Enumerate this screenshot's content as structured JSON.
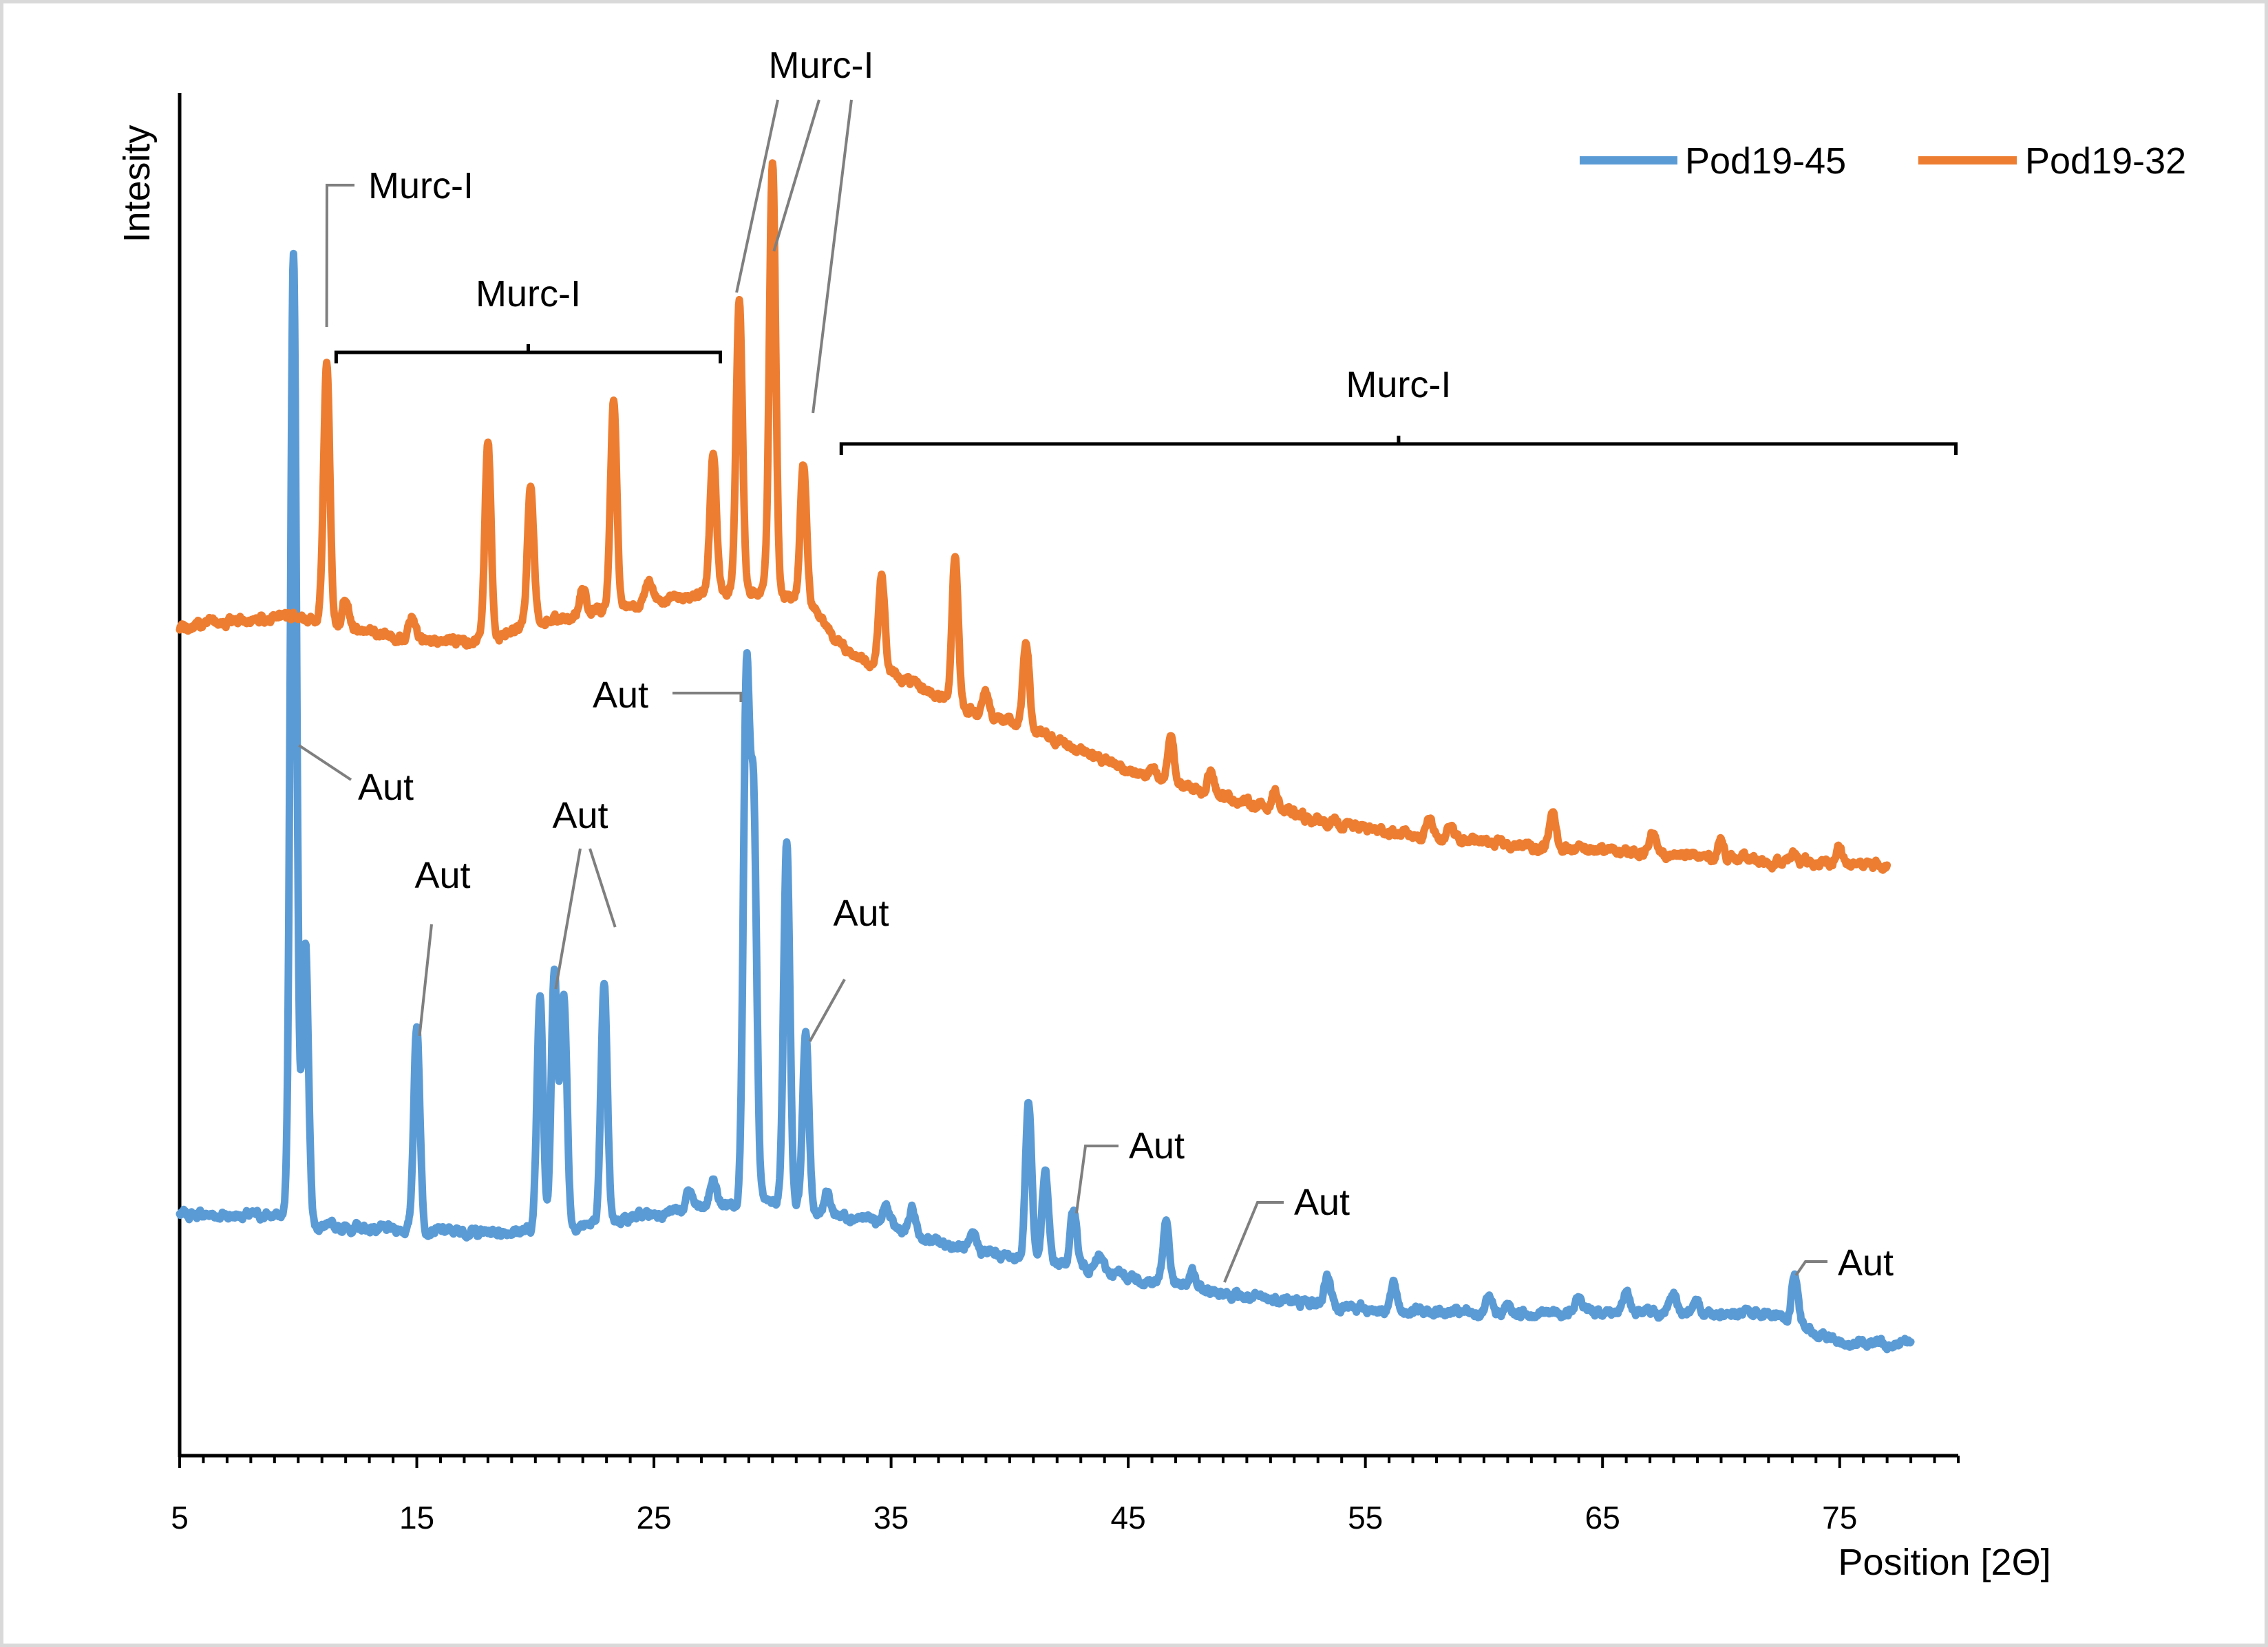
{
  "chart_data": {
    "type": "line",
    "title": "",
    "xlabel": "Position [2Θ]",
    "ylabel": "Intesity",
    "xlim": [
      5,
      80
    ],
    "xticks": [
      5,
      15,
      25,
      35,
      45,
      55,
      65,
      75
    ],
    "yticks_shown": false,
    "grid": false,
    "legend_position": "top-right",
    "series": [
      {
        "name": "Pod19-45",
        "color": "#5B9BD5",
        "x_range": [
          5,
          78
        ],
        "baseline": [
          [
            5,
            17.7
          ],
          [
            9.2,
            17.6
          ],
          [
            10.5,
            16.8
          ],
          [
            14,
            16.6
          ],
          [
            18,
            16.4
          ],
          [
            21,
            16.6
          ],
          [
            24,
            17.5
          ],
          [
            27,
            18.2
          ],
          [
            29.5,
            18.8
          ],
          [
            31.5,
            18.0
          ],
          [
            34,
            17.4
          ],
          [
            37,
            15.6
          ],
          [
            40,
            14.6
          ],
          [
            43,
            13.9
          ],
          [
            46,
            12.8
          ],
          [
            50,
            11.6
          ],
          [
            55,
            10.8
          ],
          [
            60,
            10.4
          ],
          [
            65,
            10.6
          ],
          [
            70,
            10.5
          ],
          [
            72,
            10.4
          ],
          [
            75,
            8.3
          ],
          [
            78,
            8.3
          ]
        ],
        "peaks": [
          [
            9.8,
            88.5
          ],
          [
            10.3,
            38.0
          ],
          [
            15.0,
            31.5
          ],
          [
            20.2,
            33.8
          ],
          [
            20.8,
            35.4
          ],
          [
            21.2,
            33.9
          ],
          [
            22.9,
            34.4
          ],
          [
            26.5,
            19.4
          ],
          [
            27.5,
            20.3
          ],
          [
            28.9,
            56.3
          ],
          [
            29.2,
            47.0
          ],
          [
            30.6,
            45.2
          ],
          [
            31.4,
            31.0
          ],
          [
            32.3,
            19.3
          ],
          [
            34.8,
            18.3
          ],
          [
            35.9,
            18.0
          ],
          [
            38.5,
            16.1
          ],
          [
            40.8,
            26.0
          ],
          [
            41.5,
            20.7
          ],
          [
            42.7,
            18.1
          ],
          [
            43.8,
            14.6
          ],
          [
            46.6,
            17.3
          ],
          [
            47.7,
            13.5
          ],
          [
            49.0,
            12.1
          ],
          [
            51.5,
            11.6
          ],
          [
            53.4,
            13.3
          ],
          [
            56.2,
            12.5
          ],
          [
            58.0,
            10.6
          ],
          [
            60.2,
            11.4
          ],
          [
            61.0,
            11.0
          ],
          [
            64.0,
            11.6
          ],
          [
            66.0,
            12.0
          ],
          [
            68.0,
            11.8
          ],
          [
            69.0,
            11.0
          ],
          [
            73.1,
            13.3
          ]
        ]
      },
      {
        "name": "Pod19-32",
        "color": "#ED7D31",
        "x_range": [
          5,
          77
        ],
        "baseline": [
          [
            5,
            60.8
          ],
          [
            9.5,
            61.6
          ],
          [
            11.5,
            61.0
          ],
          [
            15,
            59.8
          ],
          [
            18,
            59.8
          ],
          [
            20,
            61.2
          ],
          [
            23,
            62.1
          ],
          [
            26,
            63.0
          ],
          [
            28.5,
            63.5
          ],
          [
            31.5,
            62.8
          ],
          [
            33,
            59.2
          ],
          [
            35,
            57.4
          ],
          [
            38,
            54.9
          ],
          [
            40,
            53.8
          ],
          [
            43,
            51.8
          ],
          [
            46,
            49.6
          ],
          [
            49,
            48.4
          ],
          [
            53,
            46.6
          ],
          [
            57,
            45.5
          ],
          [
            62,
            44.7
          ],
          [
            67,
            44.2
          ],
          [
            72,
            43.6
          ],
          [
            77,
            43.3
          ]
        ],
        "peaks": [
          [
            11.2,
            80.2
          ],
          [
            12.0,
            63.0
          ],
          [
            14.8,
            61.5
          ],
          [
            18.0,
            74.4
          ],
          [
            19.8,
            71.4
          ],
          [
            22.0,
            63.6
          ],
          [
            23.3,
            77.2
          ],
          [
            24.8,
            64.4
          ],
          [
            27.5,
            73.7
          ],
          [
            28.6,
            84.8
          ],
          [
            30.0,
            94.9
          ],
          [
            31.3,
            72.8
          ],
          [
            34.6,
            64.6
          ],
          [
            37.7,
            66.1
          ],
          [
            39.0,
            56.0
          ],
          [
            40.7,
            59.8
          ],
          [
            43.3,
            51.8
          ],
          [
            46.0,
            50.4
          ],
          [
            46.8,
            52.9
          ],
          [
            48.5,
            50.5
          ],
          [
            51.2,
            48.8
          ],
          [
            57.7,
            47.0
          ],
          [
            58.6,
            46.1
          ],
          [
            62.9,
            47.1
          ],
          [
            67.1,
            46.0
          ],
          [
            70.0,
            45.2
          ],
          [
            73.1,
            44.2
          ],
          [
            75.0,
            44.7
          ]
        ]
      }
    ],
    "annotations": [
      {
        "text": "Murc-I",
        "series": "Pod19-32",
        "peak_x": 11.2
      },
      {
        "text": "Murc-I",
        "series": "Pod19-32",
        "bracket_x": [
          11.6,
          27.8
        ]
      },
      {
        "text": "Murc-I",
        "series": "Pod19-32",
        "peak_x": [
          28.6,
          30.0,
          31.3
        ]
      },
      {
        "text": "Murc-I",
        "series": "Pod19-32",
        "bracket_x": [
          32.9,
          79.9
        ]
      },
      {
        "text": "Aut",
        "series": "Pod19-45",
        "peak_x": 9.8
      },
      {
        "text": "Aut",
        "series": "Pod19-45",
        "peak_x": 15.0
      },
      {
        "text": "Aut",
        "series": "Pod19-45",
        "peak_x": [
          20.8,
          22.9
        ]
      },
      {
        "text": "Aut",
        "series": "Pod19-45",
        "peak_x": 28.9
      },
      {
        "text": "Aut",
        "series": "Pod19-45",
        "peak_x": 31.4
      },
      {
        "text": "Aut",
        "series": "Pod19-45",
        "peak_x": 42.7
      },
      {
        "text": "Aut",
        "series": "Pod19-45",
        "peak_x": 49.0
      },
      {
        "text": "Aut",
        "series": "Pod19-45",
        "peak_x": 73.1
      }
    ]
  }
}
